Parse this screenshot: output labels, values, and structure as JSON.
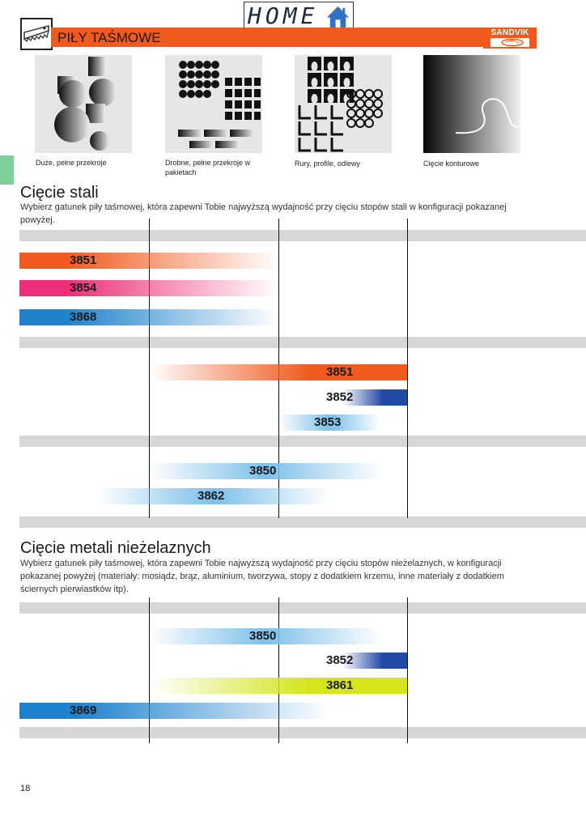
{
  "header": {
    "home_label": "HOME",
    "title": "PIŁY TAŚMOWE",
    "brand": "SANDVIK",
    "brand_color": "#f05a1e",
    "side_tab_color": "#7ecf99"
  },
  "examples": [
    {
      "caption": "Duże, pełne przekroje",
      "icon": "large-solid-sections-image"
    },
    {
      "caption": "Drobne, pełne przekroje w pakietach",
      "icon": "small-solid-bundles-image"
    },
    {
      "caption": "Rury, profile, odlewy",
      "icon": "tubes-profiles-castings-image"
    },
    {
      "caption": "Cięcie konturowe",
      "icon": "contour-cutting-image"
    }
  ],
  "steel": {
    "heading": "Cięcie stali",
    "description": "Wybierz gatunek piły taśmowej, która zapewni Tobie najwyższą wydajność przy cięciu stopów stali w konfiguracji pokazanej powyżej."
  },
  "nonferrous": {
    "heading": "Cięcie metali nieżelaznych",
    "description": "Wybierz gatunek piły taśmowej, która zapewni Tobie najwyższą wydajność przy cięciu stopów nieżelaznych, w konfiguracji pokazanej powyżej (materiały: mosiądz, brąz, aluminium, tworzywa, stopy z dodatkiem krzemu, inne materiały z dodatkiem ściernych pierwiastków itp)."
  },
  "chart_data": [
    {
      "type": "bar",
      "title": "Cięcie stali",
      "columns": [
        "Duże, pełne przekroje",
        "Drobne, pełne przekroje w pakietach",
        "Rury, profile, odlewy",
        "Cięcie konturowe"
      ],
      "x_range": [
        0,
        4
      ],
      "groups": [
        {
          "bars": [
            {
              "grade": "3851",
              "start": 0,
              "end": 2,
              "fade": "right",
              "color": "#f05a1e"
            },
            {
              "grade": "3854",
              "start": 0,
              "end": 2,
              "fade": "right",
              "color": "#ec2f78"
            },
            {
              "grade": "3868",
              "start": 0,
              "end": 2,
              "fade": "right",
              "color": "#1e82cc"
            }
          ]
        },
        {
          "bars": [
            {
              "grade": "3851",
              "start": 1,
              "end": 3,
              "fade": "left",
              "color": "#f05a1e"
            },
            {
              "grade": "3852",
              "start": 2.5,
              "end": 3,
              "fade": "left",
              "color": "#2249a6"
            },
            {
              "grade": "3853",
              "start": 2,
              "end": 2.8,
              "fade": "both",
              "color": "#7cc0ea"
            }
          ]
        },
        {
          "bars": [
            {
              "grade": "3850",
              "start": 1,
              "end": 2.8,
              "fade": "both",
              "color": "#7cc0ea"
            },
            {
              "grade": "3862",
              "start": 0.6,
              "end": 2.4,
              "fade": "both",
              "color": "#7cc0ea"
            }
          ]
        }
      ]
    },
    {
      "type": "bar",
      "title": "Cięcie metali nieżelaznych",
      "columns": [
        "Duże, pełne przekroje",
        "Drobne, pełne przekroje w pakietach",
        "Rury, profile, odlewy",
        "Cięcie konturowe"
      ],
      "x_range": [
        0,
        4
      ],
      "groups": [
        {
          "bars": [
            {
              "grade": "3850",
              "start": 1,
              "end": 2.8,
              "fade": "both",
              "color": "#7cc0ea"
            },
            {
              "grade": "3852",
              "start": 2.5,
              "end": 3,
              "fade": "left",
              "color": "#2249a6"
            },
            {
              "grade": "3861",
              "start": 1,
              "end": 3,
              "fade": "left",
              "color": "#d4e51e"
            },
            {
              "grade": "3869",
              "start": 0,
              "end": 2.4,
              "fade": "right",
              "color": "#1e82cc"
            }
          ]
        }
      ]
    }
  ],
  "page_number": "18"
}
